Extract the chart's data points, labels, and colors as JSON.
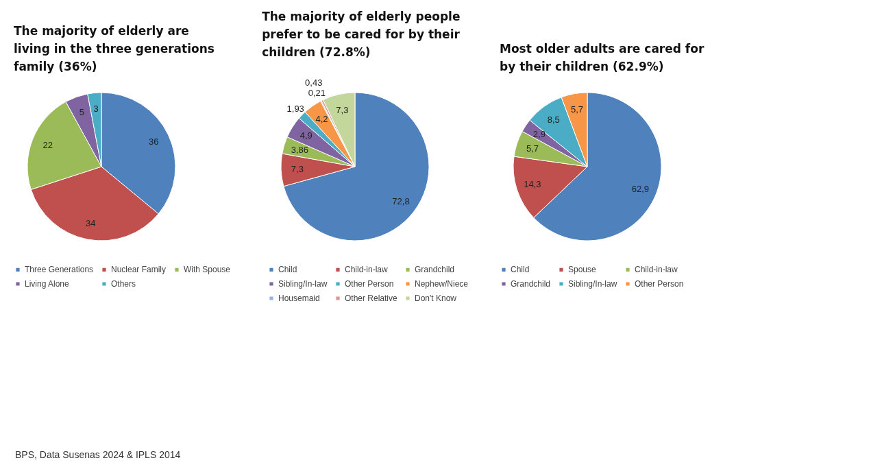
{
  "chart_data": [
    {
      "type": "pie",
      "title": "The majority of elderly are living in the three generations family (36%)",
      "categories": [
        "Three Generations",
        "Nuclear Family",
        "With Spouse",
        "Living Alone",
        "Others"
      ],
      "values": [
        36,
        34,
        22,
        5,
        3
      ],
      "colors": [
        "#4f81bd",
        "#c0504d",
        "#9bbb59",
        "#8064a2",
        "#4bacc6"
      ],
      "data_labels": true,
      "legend": "bottom",
      "annotations": [
        "BPS, Data Susenas 2024 & IPLS 2014"
      ]
    },
    {
      "type": "pie",
      "title": "The majority of elderly people prefer to be cared for by their children (72.8%)",
      "categories": [
        "Child",
        "Child-in-law",
        "Grandchild",
        "Sibling/In-law",
        "Other Person",
        "Nephew/Niece",
        "Housemaid",
        "Other Relative",
        "Don't Know"
      ],
      "values": [
        72.8,
        7.3,
        3.86,
        4.9,
        1.93,
        4.2,
        0.21,
        0.43,
        7.3
      ],
      "value_labels": [
        "72,8",
        "7,3",
        "3,86",
        "4,9",
        "1,93",
        "4,2",
        "0,21",
        "0,43",
        "7,3"
      ],
      "colors": [
        "#4f81bd",
        "#c0504d",
        "#9bbb59",
        "#8064a2",
        "#4bacc6",
        "#f79646",
        "#95b3d7",
        "#d99694",
        "#c3d69b"
      ],
      "legend": "bottom"
    },
    {
      "type": "pie",
      "title": "Most older adults are cared for by their children (62.9%)",
      "categories": [
        "Child",
        "Spouse",
        "Child-in-law",
        "Grandchild",
        "Sibling/In-law",
        "Other Person"
      ],
      "values": [
        62.9,
        14.3,
        5.7,
        2.9,
        8.5,
        5.7
      ],
      "value_labels": [
        "62,9",
        "14,3",
        "5,7",
        "2,9",
        "8,5",
        "5,7"
      ],
      "colors": [
        "#4f81bd",
        "#c0504d",
        "#9bbb59",
        "#8064a2",
        "#4bacc6",
        "#f79646"
      ],
      "legend": "bottom"
    }
  ]
}
